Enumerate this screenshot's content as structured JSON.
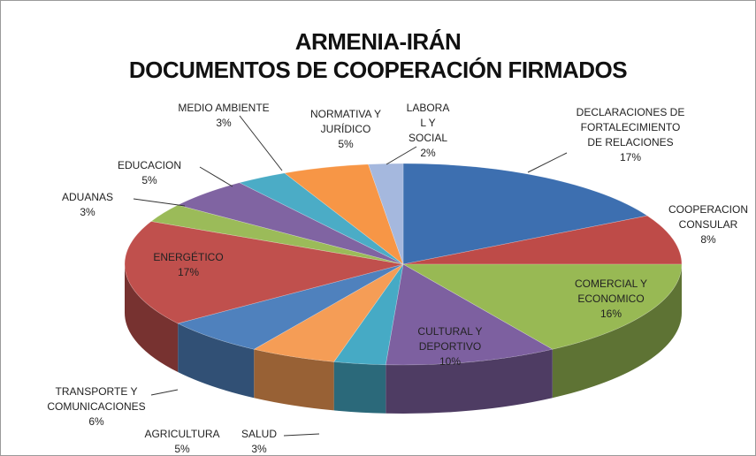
{
  "chart_data": {
    "type": "pie3d",
    "title": "ARMENIA-IRÁN\nDOCUMENTOS DE COOPERACIÓN FIRMADOS",
    "categories": [
      "DECLARACIONES DE\nFORTALECIMIENTO\nDE RELACIONES",
      "COOPERACION\nCONSULAR",
      "COMERCIAL Y\nECONOMICO",
      "CULTURAL Y\nDEPORTIVO",
      "SALUD",
      "AGRICULTURA",
      "TRANSPORTE Y\nCOMUNICACIONES",
      "ENERGÉTICO",
      "ADUANAS",
      "EDUCACION",
      "MEDIO AMBIENTE",
      "NORMATIVA Y\nJURÍDICO",
      "LABORA\nL Y\nSOCIAL"
    ],
    "values": [
      17,
      8,
      16,
      10,
      3,
      5,
      6,
      17,
      3,
      5,
      3,
      5,
      2
    ],
    "value_labels": [
      "17%",
      "8%",
      "16%",
      "10%",
      "3%",
      "5%",
      "6%",
      "17%",
      "3%",
      "5%",
      "3%",
      "5%",
      "2%"
    ],
    "colors": [
      "#3d6fb0",
      "#be4b48",
      "#98b954",
      "#7d60a0",
      "#46aac5",
      "#f59d56",
      "#4f81bd",
      "#c0504d",
      "#9bbb59",
      "#8064a2",
      "#4bacc6",
      "#f79646",
      "#a5b8de"
    ]
  }
}
